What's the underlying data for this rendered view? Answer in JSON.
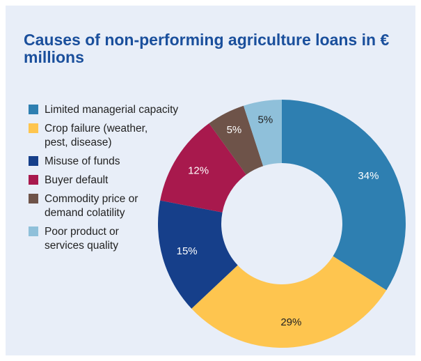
{
  "chart_data": {
    "type": "pie",
    "variant": "donut",
    "title": "Causes of non-performing agriculture loans in € millions",
    "legend_position": "left",
    "slices": [
      {
        "label": "Limited managerial capacity",
        "value": 34,
        "display": "34%",
        "color": "#2e7fb1",
        "label_color": "#ffffff"
      },
      {
        "label": "Crop failure (weather,\npest, disease)",
        "value": 29,
        "display": "29%",
        "color": "#fec54f",
        "label_color": "#222222"
      },
      {
        "label": "Misuse of funds",
        "value": 15,
        "display": "15%",
        "color": "#163f8a",
        "label_color": "#ffffff"
      },
      {
        "label": "Buyer default",
        "value": 12,
        "display": "12%",
        "color": "#a8194d",
        "label_color": "#ffffff"
      },
      {
        "label": "Commodity price or\ndemand colatility",
        "value": 5,
        "display": "5%",
        "color": "#6e5349",
        "label_color": "#ffffff"
      },
      {
        "label": "Poor product or\nservices quality",
        "value": 5,
        "display": "5%",
        "color": "#8fc0da",
        "label_color": "#222222"
      }
    ]
  },
  "colors": {
    "panel_background": "#e8eef8",
    "title": "#1a4f9c"
  }
}
